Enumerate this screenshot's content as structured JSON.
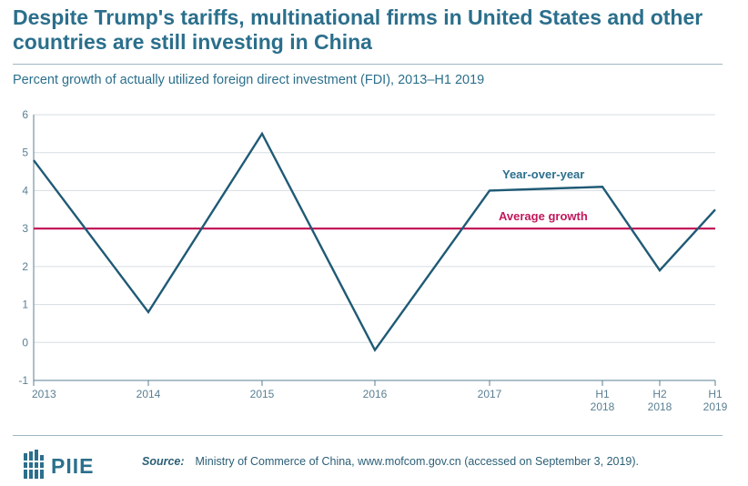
{
  "title": "Despite Trump's tariffs, multinational firms in United States and other countries are still investing in China",
  "subtitle": "Percent growth of actually utilized foreign direct investment (FDI), 2013–H1 2019",
  "colors": {
    "title": "#2b6f8c",
    "line": "#1f5a75",
    "average": "#c2185b",
    "grid": "#d6dde2",
    "axis": "#5a7f92"
  },
  "chart_data": {
    "type": "line",
    "ylim": [
      -1,
      6
    ],
    "yticks": [
      "-1",
      "0",
      "1",
      "2",
      "3",
      "4",
      "5",
      "6"
    ],
    "xticks": [
      {
        "line1": "2013",
        "line2": ""
      },
      {
        "line1": "2014",
        "line2": ""
      },
      {
        "line1": "2015",
        "line2": ""
      },
      {
        "line1": "2016",
        "line2": ""
      },
      {
        "line1": "2017",
        "line2": ""
      },
      {
        "line1": "H1",
        "line2": "2018"
      },
      {
        "line1": "H2",
        "line2": "2018"
      },
      {
        "line1": "H1",
        "line2": "2019"
      }
    ],
    "series": [
      {
        "name": "Year-over-year",
        "values": [
          4.8,
          0.8,
          5.5,
          -0.2,
          4.0,
          4.1,
          1.9,
          3.5
        ]
      }
    ],
    "reference_lines": [
      {
        "name": "Average growth",
        "value": 3.0
      }
    ],
    "grid": true
  },
  "footer": {
    "logo_text": "PIIE",
    "source_label": "Source:",
    "source_text": "Ministry of Commerce of China, www.mofcom.gov.cn (accessed on September 3, 2019)."
  }
}
